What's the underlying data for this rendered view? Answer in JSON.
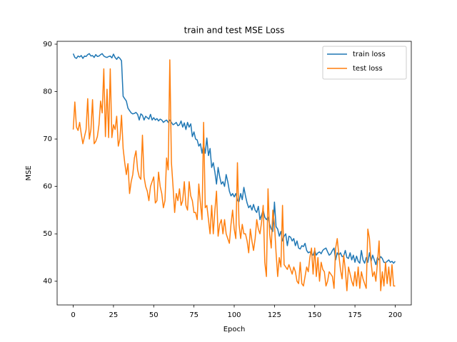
{
  "chart_data": {
    "type": "line",
    "title": "train and test MSE Loss",
    "x_label": "Epoch",
    "y_label": "MSE",
    "x": [
      0,
      1,
      2,
      3,
      4,
      5,
      6,
      7,
      8,
      9,
      10,
      11,
      12,
      13,
      14,
      15,
      16,
      17,
      18,
      19,
      20,
      21,
      22,
      23,
      24,
      25,
      26,
      27,
      28,
      29,
      30,
      31,
      32,
      33,
      34,
      35,
      36,
      37,
      38,
      39,
      40,
      41,
      42,
      43,
      44,
      45,
      46,
      47,
      48,
      49,
      50,
      51,
      52,
      53,
      54,
      55,
      56,
      57,
      58,
      59,
      60,
      61,
      62,
      63,
      64,
      65,
      66,
      67,
      68,
      69,
      70,
      71,
      72,
      73,
      74,
      75,
      76,
      77,
      78,
      79,
      80,
      81,
      82,
      83,
      84,
      85,
      86,
      87,
      88,
      89,
      90,
      91,
      92,
      93,
      94,
      95,
      96,
      97,
      98,
      99,
      100,
      101,
      102,
      103,
      104,
      105,
      106,
      107,
      108,
      109,
      110,
      111,
      112,
      113,
      114,
      115,
      116,
      117,
      118,
      119,
      120,
      121,
      122,
      123,
      124,
      125,
      126,
      127,
      128,
      129,
      130,
      131,
      132,
      133,
      134,
      135,
      136,
      137,
      138,
      139,
      140,
      141,
      142,
      143,
      144,
      145,
      146,
      147,
      148,
      149,
      150,
      151,
      152,
      153,
      154,
      155,
      156,
      157,
      158,
      159,
      160,
      161,
      162,
      163,
      164,
      165,
      166,
      167,
      168,
      169,
      170,
      171,
      172,
      173,
      174,
      175,
      176,
      177,
      178,
      179,
      180,
      181,
      182,
      183,
      184,
      185,
      186,
      187,
      188,
      189,
      190,
      191,
      192,
      193,
      194,
      195,
      196,
      197,
      198,
      199,
      200
    ],
    "series": [
      {
        "name": "train loss",
        "color": "#1f77b4",
        "values": [
          88,
          87.2,
          87,
          87.5,
          87.3,
          87.6,
          87,
          87.5,
          87.4,
          87.8,
          88,
          87.5,
          87.6,
          87.2,
          87.8,
          87.4,
          87.5,
          87.8,
          88,
          87.5,
          87.3,
          87.2,
          87.4,
          87.5,
          87.1,
          87.9,
          87.2,
          86.8,
          87.3,
          87,
          86.5,
          79,
          78.5,
          78,
          76.5,
          76,
          75.5,
          75.3,
          75.4,
          75.6,
          75.2,
          74,
          75.3,
          75,
          74,
          74.8,
          74.5,
          74.2,
          75.2,
          74,
          74.5,
          74,
          74.3,
          73.8,
          74.2,
          74,
          73.5,
          73.8,
          74,
          73.5,
          74,
          73.5,
          73,
          73.2,
          73.5,
          72.8,
          73,
          73.8,
          72.5,
          73.4,
          72,
          73.5,
          72.5,
          73.2,
          70.5,
          71.5,
          70,
          69.8,
          68.5,
          69,
          67,
          68.8,
          67,
          70.2,
          66.5,
          68,
          64,
          65,
          63,
          60.5,
          64,
          62,
          60.5,
          61,
          60,
          62.5,
          61,
          59,
          58,
          58.5,
          57.8,
          58.5,
          57,
          56.8,
          58.5,
          57.2,
          59.8,
          58,
          56.5,
          55.5,
          56,
          55,
          56.2,
          55,
          54.5,
          55.8,
          53,
          54,
          55,
          53.5,
          53,
          53.5,
          52,
          51,
          50.5,
          56.7,
          51.5,
          51,
          49.5,
          50.5,
          48.5,
          49.5,
          50,
          47.5,
          49.5,
          49.3,
          48.5,
          49,
          47.5,
          48.5,
          47,
          46.8,
          47.5,
          47.3,
          48,
          46.5,
          46,
          46.2,
          45.8,
          45.5,
          46.5,
          45.5,
          46,
          46.2,
          45.8,
          46.5,
          46.8,
          47,
          46.2,
          45.5,
          45.8,
          46.5,
          47,
          44.5,
          46,
          45.5,
          46,
          45.2,
          45.3,
          46.5,
          45,
          44.8,
          46,
          44.5,
          45.5,
          44,
          45.3,
          44.2,
          43.8,
          46.5,
          44.5,
          43.8,
          45,
          44,
          46,
          44.2,
          45.5,
          44.5,
          43.5,
          45,
          44.5,
          45.2,
          44.8,
          44,
          43.9,
          44.2,
          44.5,
          44,
          44.2,
          43.8,
          44.2
        ]
      },
      {
        "name": "test loss",
        "color": "#ff7f0e",
        "values": [
          72,
          77.8,
          72.5,
          71.8,
          73.5,
          71,
          69,
          70.5,
          72,
          78.5,
          70,
          72,
          78.3,
          69,
          69.5,
          70.5,
          73,
          78,
          75.5,
          84.8,
          70.5,
          80.5,
          70.3,
          84.8,
          70.3,
          73,
          72,
          74.8,
          68.5,
          70,
          75,
          68,
          65,
          62.5,
          64.8,
          58.5,
          61,
          62.5,
          66,
          67.5,
          63.5,
          62,
          61.5,
          70.8,
          62,
          60,
          59,
          57,
          60,
          61,
          62,
          56.5,
          57,
          63,
          60,
          58.5,
          55.5,
          57,
          66,
          63.5,
          86.7,
          65,
          60,
          54.5,
          58.5,
          57,
          59.5,
          56,
          57,
          61,
          56,
          55,
          61,
          58,
          57,
          54.5,
          54.5,
          53,
          60.5,
          56.5,
          53,
          73.5,
          55.5,
          56,
          53,
          50,
          56,
          50,
          55,
          59,
          49.5,
          52,
          53,
          50,
          53,
          50,
          49,
          48,
          52,
          55,
          51,
          49,
          65,
          52,
          49,
          52,
          50,
          50,
          48.5,
          46,
          51,
          48.5,
          46.5,
          49,
          53,
          51,
          50,
          52.5,
          56,
          44,
          41,
          59.5,
          50,
          47,
          55,
          52,
          46,
          41,
          45,
          43,
          56,
          43.5,
          43,
          42.5,
          43.5,
          42.5,
          41.5,
          43,
          42,
          40,
          39.5,
          44,
          39.5,
          39,
          41,
          43,
          42,
          45,
          47,
          41.5,
          47,
          41,
          45,
          40,
          44,
          42.5,
          42,
          39,
          40,
          42,
          41.5,
          41,
          38.5,
          47,
          49,
          45.5,
          42.5,
          40.5,
          45.5,
          42.5,
          38,
          43,
          41.5,
          40,
          39,
          42,
          39,
          43,
          38.5,
          42,
          40.5,
          39.5,
          38.5,
          51,
          49,
          44,
          41,
          42,
          40,
          44,
          48.5,
          38,
          42,
          39,
          44,
          39.5,
          43,
          39,
          43.5,
          39,
          39
        ]
      }
    ],
    "xlim": [
      -10,
      210
    ],
    "ylim": [
      35,
      90.6
    ],
    "xticks": [
      0,
      25,
      50,
      75,
      100,
      125,
      150,
      175,
      200
    ],
    "yticks": [
      40,
      50,
      60,
      70,
      80,
      90
    ],
    "legend": "upper right"
  }
}
